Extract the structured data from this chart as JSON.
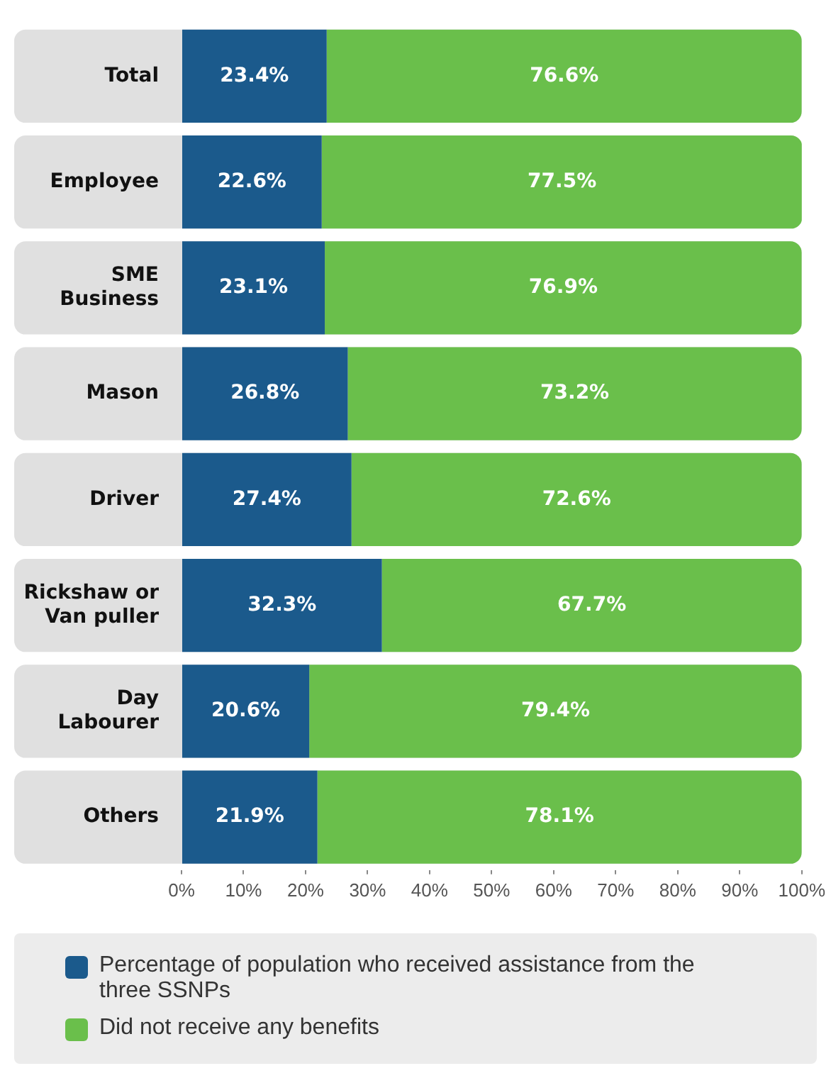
{
  "chart_data": {
    "type": "bar",
    "orientation": "horizontal",
    "stacked": true,
    "legend": "bottom",
    "grid": false,
    "categories": [
      "Total",
      "Employee",
      "SME Business",
      "Mason",
      "Driver",
      "Rickshaw or Van puller",
      "Day Labourer",
      "Others"
    ],
    "series": [
      {
        "name": "Percentage of population who received assistance from the three SSNPs",
        "color": "#1b5a8c",
        "values": [
          23.4,
          22.6,
          23.1,
          26.8,
          27.4,
          32.3,
          20.6,
          21.9
        ],
        "value_labels": [
          "23.4%",
          "22.6%",
          "23.1%",
          "26.8%",
          "27.4%",
          "32.3%",
          "20.6%",
          "21.9%"
        ]
      },
      {
        "name": "Did not receive any benefits",
        "color": "#6abf4b",
        "values": [
          76.6,
          77.5,
          76.9,
          73.2,
          72.6,
          67.7,
          79.4,
          78.1
        ],
        "value_labels": [
          "76.6%",
          "77.5%",
          "76.9%",
          "73.2%",
          "72.6%",
          "67.7%",
          "79.4%",
          "78.1%"
        ]
      }
    ],
    "xlim": [
      0,
      100
    ],
    "xticks": [
      {
        "value": 0,
        "label": "0%"
      },
      {
        "value": 10,
        "label": "10%"
      },
      {
        "value": 20,
        "label": "20%"
      },
      {
        "value": 30,
        "label": "30%"
      },
      {
        "value": 40,
        "label": "40%"
      },
      {
        "value": 50,
        "label": "50%"
      },
      {
        "value": 60,
        "label": "60%"
      },
      {
        "value": 70,
        "label": "70%"
      },
      {
        "value": 80,
        "label": "80%"
      },
      {
        "value": 90,
        "label": "90%"
      },
      {
        "value": 100,
        "label": "100%"
      }
    ]
  }
}
